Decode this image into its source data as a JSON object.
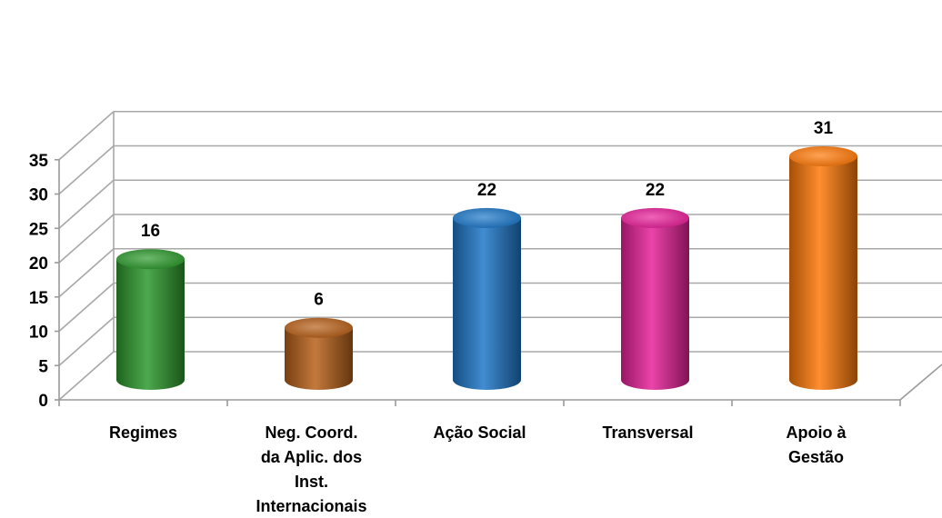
{
  "chart_data": {
    "type": "bar",
    "title": "",
    "xlabel": "",
    "ylabel": "",
    "ylim": [
      0,
      35
    ],
    "yticks": [
      0,
      5,
      10,
      15,
      20,
      25,
      30,
      35
    ],
    "grid": true,
    "style": "3d-cylinder",
    "categories": [
      [
        "Regimes"
      ],
      [
        "Neg. Coord.",
        "da Aplic. dos",
        "Inst.",
        "Internacionais"
      ],
      [
        "Ação Social"
      ],
      [
        "Transversal"
      ],
      [
        "Apoio à",
        "Gestão"
      ]
    ],
    "values": [
      16,
      6,
      22,
      22,
      31
    ],
    "data_labels": [
      "16",
      "6",
      "22",
      "22",
      "31"
    ],
    "colors": [
      "#2e9a2e",
      "#b8611a",
      "#1f78c9",
      "#e8229a",
      "#ff7a0a"
    ]
  }
}
